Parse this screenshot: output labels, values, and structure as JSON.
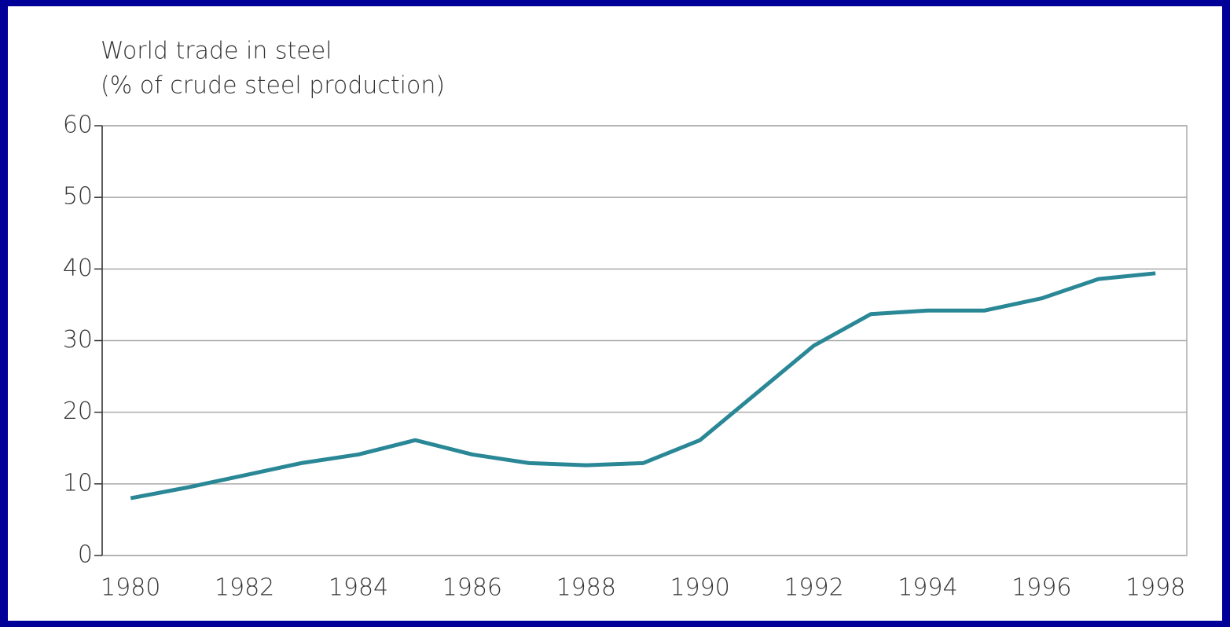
{
  "chart_data": {
    "type": "line",
    "title": "World trade in steel",
    "subtitle": "(% of crude steel production)",
    "x": [
      1980,
      1981,
      1982,
      1983,
      1984,
      1985,
      1986,
      1987,
      1988,
      1989,
      1990,
      1991,
      1992,
      1993,
      1994,
      1995,
      1996,
      1997,
      1998
    ],
    "series": [
      {
        "name": "World trade in steel",
        "color": "#2a8796",
        "values": [
          8,
          9.5,
          11.2,
          12.9,
          14.1,
          16.1,
          14.1,
          12.9,
          12.6,
          12.9,
          16.1,
          22.7,
          29.3,
          33.7,
          34.2,
          34.2,
          35.9,
          38.6,
          39.4
        ]
      }
    ],
    "xlim": [
      1979.5,
      1998.55
    ],
    "xticks": [
      1980,
      1982,
      1984,
      1986,
      1988,
      1990,
      1992,
      1994,
      1996,
      1998
    ],
    "ylim": [
      0,
      60
    ],
    "yticks": [
      0,
      10,
      20,
      30,
      40,
      50,
      60
    ],
    "grid": true
  }
}
